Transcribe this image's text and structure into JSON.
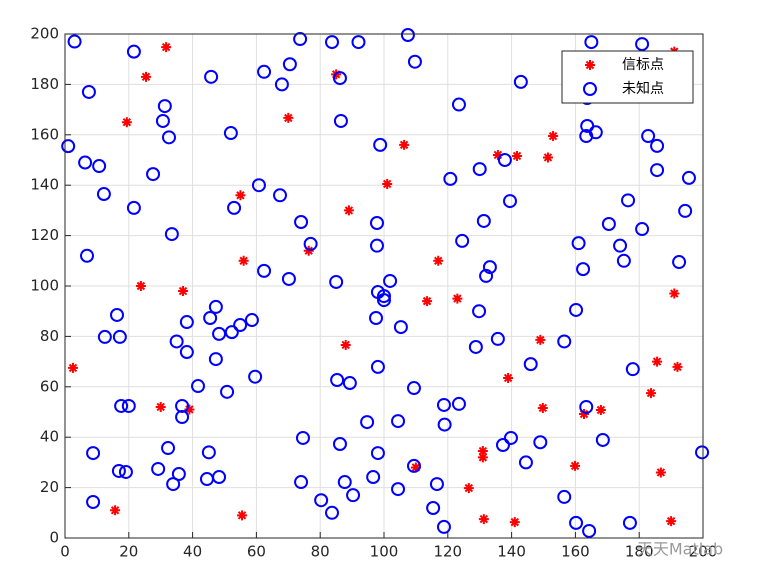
{
  "chart_data": {
    "type": "scatter",
    "xlim": [
      0,
      200
    ],
    "ylim": [
      0,
      200
    ],
    "xticks": [
      0,
      20,
      40,
      60,
      80,
      100,
      120,
      140,
      160,
      180,
      200
    ],
    "yticks": [
      0,
      20,
      40,
      60,
      80,
      100,
      120,
      140,
      160,
      180,
      200
    ],
    "grid": true,
    "legend": "upper-right",
    "annotation": "天天Matlab",
    "series": [
      {
        "name": "信标点",
        "color": "#ff0000",
        "marker": "asterisk",
        "x": [
          2.5,
          31.7,
          25.4,
          19.4,
          23.8,
          37.0,
          30.0,
          39.0,
          15.7,
          55.0,
          56.0,
          55.5,
          70.0,
          76.4,
          85.0,
          89.0,
          88.0,
          101.0,
          106.3,
          113.5,
          117.0,
          123.0,
          126.6,
          131.0,
          131.0,
          131.3,
          110.0,
          135.7,
          141.7,
          138.9,
          141.0,
          149.0,
          149.8,
          151.4,
          153.0,
          159.9,
          162.7,
          168.0,
          183.7,
          185.6,
          186.8,
          190.0,
          191.0,
          192.0,
          191.0
        ],
        "values": [
          67.5,
          194.8,
          183.0,
          165.0,
          100.0,
          98.0,
          52.0,
          51.0,
          11.0,
          136.0,
          110.0,
          9.0,
          166.7,
          114.0,
          184.0,
          130.0,
          76.6,
          140.5,
          156.0,
          94.0,
          110.0,
          95.0,
          19.8,
          34.5,
          32.0,
          7.5,
          28.0,
          152.0,
          151.6,
          63.5,
          6.3,
          78.6,
          51.6,
          151.0,
          159.5,
          28.6,
          49.2,
          50.8,
          57.5,
          70.0,
          26.0,
          6.7,
          97.0,
          67.9,
          193.0
        ]
      },
      {
        "name": "未知点",
        "color": "#0000ff",
        "marker": "circle",
        "x": [
          3.0,
          7.5,
          1.0,
          6.3,
          10.7,
          12.2,
          21.6,
          21.6,
          27.6,
          31.3,
          30.7,
          32.6,
          33.5,
          6.9,
          16.3,
          12.5,
          17.2,
          35.0,
          38.2,
          38.2,
          17.6,
          20.0,
          36.7,
          36.7,
          8.8,
          8.8,
          16.9,
          19.1,
          29.2,
          32.3,
          33.9,
          35.7,
          41.7,
          45.8,
          45.5,
          47.3,
          48.3,
          47.3,
          50.8,
          45.1,
          44.5,
          48.3,
          52.0,
          53.0,
          52.3,
          54.9,
          58.6,
          59.6,
          60.8,
          62.4,
          62.4,
          68.0,
          70.5,
          67.4,
          70.2,
          73.7,
          74.0,
          77.0,
          74.6,
          74.0,
          80.3,
          83.7,
          83.7,
          86.2,
          86.5,
          85.0,
          85.3,
          89.3,
          86.2,
          87.7,
          90.3,
          92.0,
          98.8,
          97.8,
          97.8,
          98.1,
          100.0,
          100.0,
          97.5,
          101.9,
          105.3,
          98.1,
          94.7,
          98.1,
          96.6,
          104.4,
          104.4,
          107.5,
          109.7,
          109.4,
          109.4,
          119.0,
          118.8,
          123.5,
          116.6,
          115.4,
          118.8,
          120.8,
          123.5,
          124.5,
          130.0,
          131.3,
          133.2,
          132.0,
          129.8,
          128.8,
          135.7,
          137.9,
          139.5,
          142.9,
          146.0,
          137.3,
          139.8,
          144.5,
          149.0,
          156.5,
          156.5,
          161.0,
          162.4,
          160.2,
          163.4,
          160.2,
          164.3,
          163.7,
          163.7,
          163.4,
          166.4,
          165.0,
          170.5,
          168.6,
          174.0,
          175.2,
          176.5,
          178.0,
          177.1,
          180.9,
          180.9,
          182.8,
          185.6,
          185.6,
          195.6,
          194.4,
          192.5,
          199.7
        ],
        "values": [
          197.0,
          177.0,
          155.5,
          149.0,
          147.6,
          136.5,
          193.0,
          131.0,
          144.4,
          171.4,
          165.5,
          159.0,
          120.6,
          112.0,
          88.5,
          79.8,
          79.8,
          78.0,
          85.7,
          73.8,
          52.4,
          52.4,
          52.4,
          48.0,
          33.7,
          14.3,
          26.6,
          26.2,
          27.4,
          35.7,
          21.4,
          25.4,
          60.3,
          183.0,
          87.3,
          91.7,
          81.0,
          71.0,
          58.0,
          34.0,
          23.4,
          24.2,
          160.7,
          131.0,
          81.7,
          84.5,
          86.5,
          64.0,
          140.0,
          185.0,
          106.0,
          180.0,
          188.0,
          136.0,
          102.8,
          198.0,
          125.4,
          116.7,
          39.7,
          22.2,
          15.0,
          10.0,
          196.8,
          182.5,
          165.5,
          101.6,
          62.7,
          61.5,
          37.3,
          22.2,
          17.0,
          196.8,
          156.0,
          125.0,
          116.0,
          97.6,
          96.0,
          94.4,
          87.3,
          102.0,
          83.7,
          67.9,
          46.0,
          33.7,
          24.2,
          19.4,
          46.4,
          199.6,
          189.0,
          59.5,
          28.6,
          45.0,
          52.8,
          53.2,
          21.4,
          11.9,
          4.4,
          142.5,
          172.0,
          117.9,
          146.4,
          125.8,
          107.5,
          104.0,
          90.0,
          75.8,
          79.0,
          150.0,
          133.7,
          181.0,
          69.0,
          36.9,
          39.7,
          30.0,
          38.0,
          78.0,
          16.3,
          117.0,
          106.7,
          90.5,
          52.0,
          6.0,
          2.8,
          174.6,
          163.5,
          159.5,
          161.0,
          196.8,
          124.6,
          38.9,
          116.0,
          110.0,
          134.0,
          67.0,
          6.0,
          196.0,
          122.6,
          159.5,
          155.6,
          146.0,
          142.9,
          129.8,
          109.5,
          34.0
        ]
      }
    ]
  }
}
